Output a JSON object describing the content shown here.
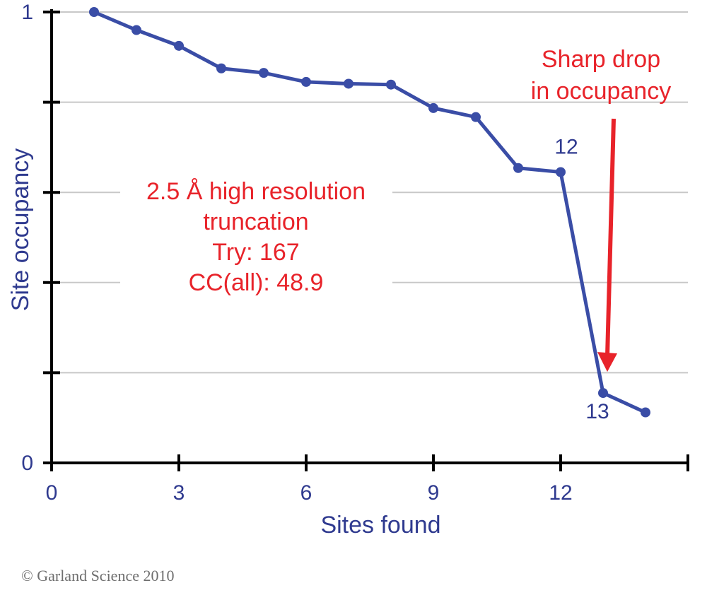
{
  "chart_data": {
    "type": "line",
    "xlabel": "Sites found",
    "ylabel": "Site occupancy",
    "xlim": [
      0,
      15
    ],
    "ylim": [
      0,
      1
    ],
    "x_ticks": [
      0,
      3,
      6,
      9,
      12
    ],
    "x_minor_ticks": [
      15
    ],
    "y_ticks": [
      0,
      0.2,
      0.4,
      0.6,
      0.8,
      1
    ],
    "y_tick_labels": [
      "0",
      "",
      "",
      "",
      "",
      "1"
    ],
    "grid": true,
    "series": [
      {
        "name": "Site occupancy",
        "x": [
          1,
          2,
          3,
          4,
          5,
          6,
          7,
          8,
          9,
          10,
          11,
          12,
          13,
          14
        ],
        "y": [
          1.0,
          0.96,
          0.925,
          0.875,
          0.865,
          0.845,
          0.841,
          0.839,
          0.787,
          0.767,
          0.654,
          0.645,
          0.155,
          0.112
        ],
        "color": "#3a4da6"
      }
    ],
    "point_labels": [
      {
        "text": "12",
        "x": 12,
        "y": 0.645
      },
      {
        "text": "13",
        "x": 13,
        "y": 0.155
      }
    ],
    "annotations": {
      "info_lines": [
        "2.5 Å high resolution",
        "truncation",
        "Try: 167",
        "CC(all): 48.9"
      ],
      "drop_lines": [
        "Sharp drop",
        "in occupancy"
      ],
      "arrow_target": {
        "x": 13,
        "y": 0.155
      }
    },
    "colors": {
      "line": "#3a4da6",
      "axis": "#000000",
      "grid": "#c8c8c8",
      "label": "#2f3a8f",
      "annotation": "#e8232a"
    }
  },
  "copyright": "© Garland Science 2010"
}
